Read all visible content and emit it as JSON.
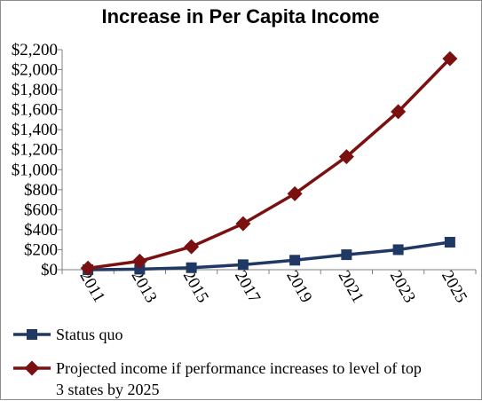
{
  "chart_data": {
    "type": "line",
    "title": "Increase in Per Capita Income",
    "xlabel": "",
    "ylabel": "",
    "x": [
      "2011",
      "2013",
      "2015",
      "2017",
      "2019",
      "2021",
      "2023",
      "2025"
    ],
    "y_ticks": [
      "$0",
      "$200",
      "$400",
      "$600",
      "$800",
      "$1,000",
      "$1,200",
      "$1,400",
      "$1,600",
      "$1,800",
      "$2,000",
      "$2,200"
    ],
    "ylim": [
      0,
      2200
    ],
    "grid": false,
    "legend": "bottom",
    "series": [
      {
        "name": "Status quo",
        "color": "#1f3864",
        "marker": "square",
        "values": [
          0,
          5,
          20,
          50,
          95,
          150,
          200,
          275
        ]
      },
      {
        "name": "Projected income if performance increases to level of top 3 states by 2025",
        "legend_lines": [
          "Projected income if performance increases to level of top",
          "3 states by 2025"
        ],
        "color": "#7b1010",
        "marker": "diamond",
        "values": [
          15,
          85,
          230,
          460,
          760,
          1130,
          1580,
          2110
        ]
      }
    ]
  }
}
